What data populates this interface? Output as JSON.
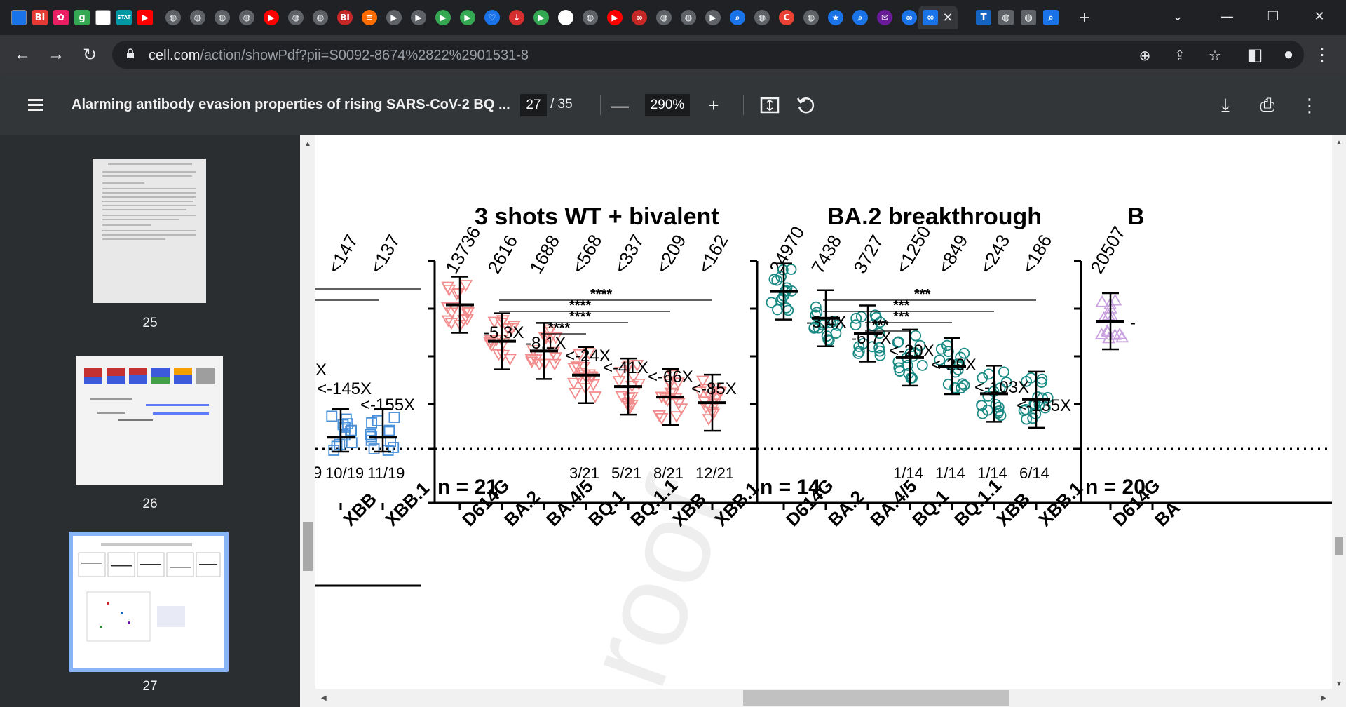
{
  "tabs": {
    "favicons": [
      {
        "name": "globe",
        "label": "",
        "color": "#1a73e8"
      },
      {
        "name": "bi",
        "label": "BI",
        "color": "#e53935"
      },
      {
        "name": "flower",
        "label": "✿",
        "color": "#e91e63"
      },
      {
        "name": "g",
        "label": "g",
        "color": "#34a853"
      },
      {
        "name": "blank",
        "label": "",
        "color": "#ffffff"
      },
      {
        "name": "stat",
        "label": "STAT",
        "color": "#0097a7"
      },
      {
        "name": "youtube",
        "label": "▶",
        "color": "#ff0000"
      }
    ],
    "active_close": "✕",
    "new_tab": "+"
  },
  "address": {
    "host": "cell.com",
    "path": "/action/showPdf?pii=S0092-8674%2822%2901531-8"
  },
  "pdf": {
    "title": "Alarming antibody evasion properties of rising SARS-CoV-2 BQ ...",
    "current_page": "27",
    "total_pages": "/ 35",
    "zoom": "290%",
    "minus": "—",
    "plus": "+"
  },
  "sidebar": {
    "pages": [
      "25",
      "26",
      "27"
    ]
  },
  "figure": {
    "left_panel": {
      "top_labels": [
        "<147",
        "<137"
      ],
      "folds": [
        "<-145X",
        "<-155X"
      ],
      "fold_cut": "X",
      "counts": [
        "10/19",
        "11/19"
      ],
      "count_cut": "9",
      "variants": [
        "XBB",
        "XBB.1"
      ]
    },
    "mid_panel": {
      "title": "3 shots WT + bivalent",
      "top_labels": [
        "13736",
        "2616",
        "1688",
        "<568",
        "<337",
        "<209",
        "<162"
      ],
      "folds": [
        "-5.3X",
        "-8.1X",
        "<-24X",
        "<-41X",
        "<-66X",
        "<-85X"
      ],
      "stars": [
        "****",
        "****",
        "****",
        "****"
      ],
      "counts": [
        "3/21",
        "5/21",
        "8/21",
        "12/21"
      ],
      "n": "n = 21",
      "variants": [
        "D614G",
        "BA.2",
        "BA.4/5",
        "BQ.1",
        "BQ.1.1",
        "XBB",
        "XBB.1"
      ]
    },
    "right_panel": {
      "title": "BA.2 breakthrough",
      "top_labels": [
        "24970",
        "7438",
        "3727",
        "<1250",
        "<849",
        "<243",
        "<186"
      ],
      "folds": [
        "-3.4X",
        "-6.7X",
        "<-20X",
        "<-29X",
        "<-103X",
        "<-135X"
      ],
      "stars": [
        "***",
        "***",
        "***",
        "***"
      ],
      "counts": [
        "1/14",
        "1/14",
        "1/14",
        "6/14"
      ],
      "n": "n = 14",
      "variants": [
        "D614G",
        "BA.2",
        "BA.4/5",
        "BQ.1",
        "BQ.1.1",
        "XBB",
        "XBB.1"
      ]
    },
    "far_panel": {
      "title_cut": "B",
      "top_label": "20507",
      "fold_cut": "-",
      "n": "n = 20",
      "variants": [
        "D614G",
        "BA"
      ]
    },
    "watermark": "roof"
  },
  "colors": {
    "left_marker": "#4a90d9",
    "mid_marker": "#f28b8b",
    "right_marker": "#1a8a84",
    "far_marker": "#c9a0e0"
  }
}
